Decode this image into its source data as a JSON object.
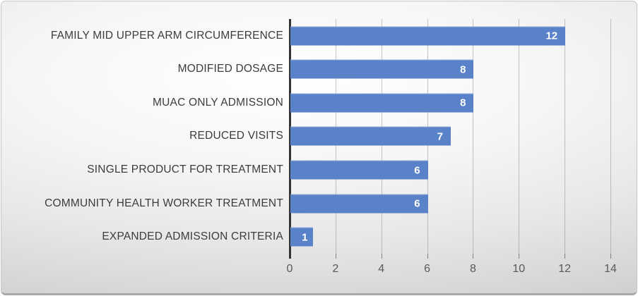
{
  "chart_style": {
    "bar_color": "#5A82C8",
    "axis_line_color": "#333333",
    "gridline_color": "rgba(128,128,128,0.45)",
    "category_text_color": "#3C3C3C",
    "tick_text_color": "#595959",
    "value_label_color": "#FFFFFF",
    "background": "gray radial gradient, white center"
  },
  "chart_data": {
    "type": "bar",
    "orientation": "horizontal",
    "title": "",
    "xlabel": "",
    "ylabel": "",
    "categories": [
      "FAMILY MID UPPER ARM CIRCUMFERENCE",
      "MODIFIED DOSAGE",
      "MUAC ONLY ADMISSION",
      "REDUCED VISITS",
      "SINGLE PRODUCT FOR TREATMENT",
      "COMMUNITY HEALTH WORKER TREATMENT",
      "EXPANDED ADMISSION CRITERIA"
    ],
    "values": [
      12,
      8,
      8,
      7,
      6,
      6,
      1
    ],
    "xlim": [
      0,
      14
    ],
    "xticks": [
      0,
      2,
      4,
      6,
      8,
      10,
      12,
      14
    ],
    "gridlines": "vertical, every 2 units",
    "value_labels": "inside end, white bold",
    "legend": "none"
  }
}
